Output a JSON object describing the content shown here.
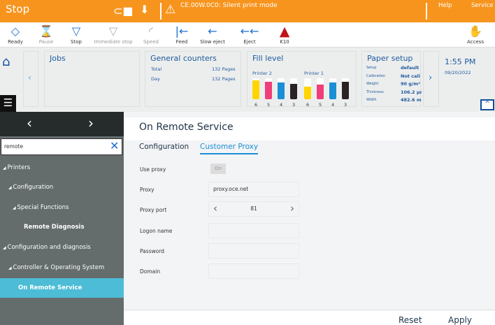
{
  "topbar": {
    "title": "Stop",
    "message": "CE.00W.0C0: Silent print mode",
    "help": "Help",
    "service": "Service"
  },
  "toolbar": {
    "items": [
      {
        "label": "Ready",
        "icon": "ready-icon"
      },
      {
        "label": "Pause",
        "icon": "hourglass-icon"
      },
      {
        "label": "Stop",
        "icon": "stop-icon"
      },
      {
        "label": "Immediate stop",
        "icon": "immediate-stop-icon"
      },
      {
        "label": "Speed",
        "icon": "speed-icon"
      },
      {
        "label": "Feed",
        "icon": "feed-icon"
      },
      {
        "label": "Slow eject",
        "icon": "slow-eject-icon"
      },
      {
        "label": "Eject",
        "icon": "eject-icon"
      },
      {
        "label": "K10",
        "icon": "warning-icon"
      }
    ],
    "access": "Access"
  },
  "dashboard": {
    "jobs": {
      "title": "Jobs"
    },
    "counters": {
      "title": "General counters",
      "rows": [
        {
          "label": "Total",
          "value": "132 Pages"
        },
        {
          "label": "Day",
          "value": "132 Pages"
        }
      ]
    },
    "fill": {
      "title": "Fill level",
      "printers": [
        {
          "name": "Printer 2",
          "levels": [
            0.9,
            0.85,
            0.8,
            0.75
          ],
          "numbers": [
            "6",
            "5",
            "4",
            "3"
          ]
        },
        {
          "name": "Printer 1",
          "levels": [
            0.6,
            0.7,
            0.8,
            0.85
          ],
          "numbers": [
            "6",
            "5",
            "4",
            "3"
          ]
        }
      ],
      "colors": [
        "#ffd500",
        "#ef3f7a",
        "#1b8fd6",
        "#2a2223"
      ]
    },
    "paper": {
      "title": "Paper setup",
      "rows": [
        {
          "label": "Setup",
          "value": "default"
        },
        {
          "label": "Calibration",
          "value": "Not cali"
        },
        {
          "label": "Weight",
          "value": "90 g/m²"
        },
        {
          "label": "Thickness",
          "value": "106.2 µn"
        },
        {
          "label": "Width",
          "value": "482.6 m"
        }
      ]
    },
    "time": "1:55 PM",
    "date": "09/20/2022"
  },
  "sidebar": {
    "search_value": "remote",
    "tree": [
      {
        "label": "Printers",
        "level": 0
      },
      {
        "label": "Configuration",
        "level": 1
      },
      {
        "label": "Special Functions",
        "level": 2
      },
      {
        "label": "Remote Diagnosis",
        "level": 3,
        "bold": true
      },
      {
        "label": "Configuration and diagnosis",
        "level": 0
      },
      {
        "label": "Controller & Operating System",
        "level": 1
      },
      {
        "label": "On Remote Service",
        "level": 2,
        "selected": true
      }
    ]
  },
  "main": {
    "title": "On Remote Service",
    "tabs": [
      "Configuration",
      "Customer Proxy"
    ],
    "active_tab": "Customer Proxy",
    "form": {
      "use_proxy": {
        "label": "Use proxy",
        "value": "On"
      },
      "proxy": {
        "label": "Proxy",
        "value": "proxy.oce.net"
      },
      "port": {
        "label": "Proxy port",
        "value": "81"
      },
      "logon": {
        "label": "Logon name",
        "value": ""
      },
      "password": {
        "label": "Password",
        "value": ""
      },
      "domain": {
        "label": "Domain",
        "value": ""
      }
    },
    "reset": "Reset",
    "apply": "Apply"
  }
}
